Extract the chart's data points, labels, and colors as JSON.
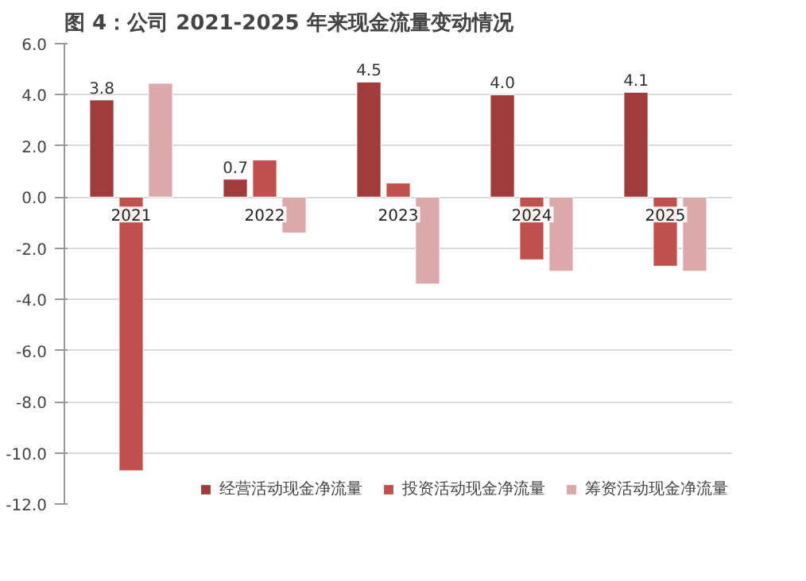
{
  "chart_data": {
    "type": "bar",
    "title": "图 4：公司 2021-2025 年来现金流量变动情况",
    "categories": [
      "2021",
      "2022",
      "2023",
      "2024",
      "2025"
    ],
    "series": [
      {
        "name": "经营活动现金净流量",
        "color": "#9e3d3b",
        "values": [
          3.8,
          0.7,
          4.5,
          4.0,
          4.1
        ],
        "value_labels": [
          "3.8",
          "0.7",
          "4.5",
          "4.0",
          "4.1"
        ]
      },
      {
        "name": "投资活动现金净流量",
        "color": "#c0504d",
        "values": [
          -10.7,
          1.45,
          0.55,
          -2.45,
          -2.7
        ]
      },
      {
        "name": "筹资活动现金净流量",
        "color": "#dba9a9",
        "values": [
          4.45,
          -1.4,
          -3.4,
          -2.9,
          -2.9
        ]
      }
    ],
    "ylim": [
      -12,
      6
    ],
    "yticks": [
      {
        "value": -12,
        "label": "-12.0"
      },
      {
        "value": -10,
        "label": "-10.0"
      },
      {
        "value": -8,
        "label": "-8.0"
      },
      {
        "value": -6,
        "label": "-6.0"
      },
      {
        "value": -4,
        "label": "-4.0"
      },
      {
        "value": -2,
        "label": "-2.0"
      },
      {
        "value": 0,
        "label": "0.0"
      },
      {
        "value": 2,
        "label": "2.0"
      },
      {
        "value": 4,
        "label": "4.0"
      },
      {
        "value": 6,
        "label": "6.0"
      }
    ],
    "grid": "y",
    "legend": "bottom"
  }
}
